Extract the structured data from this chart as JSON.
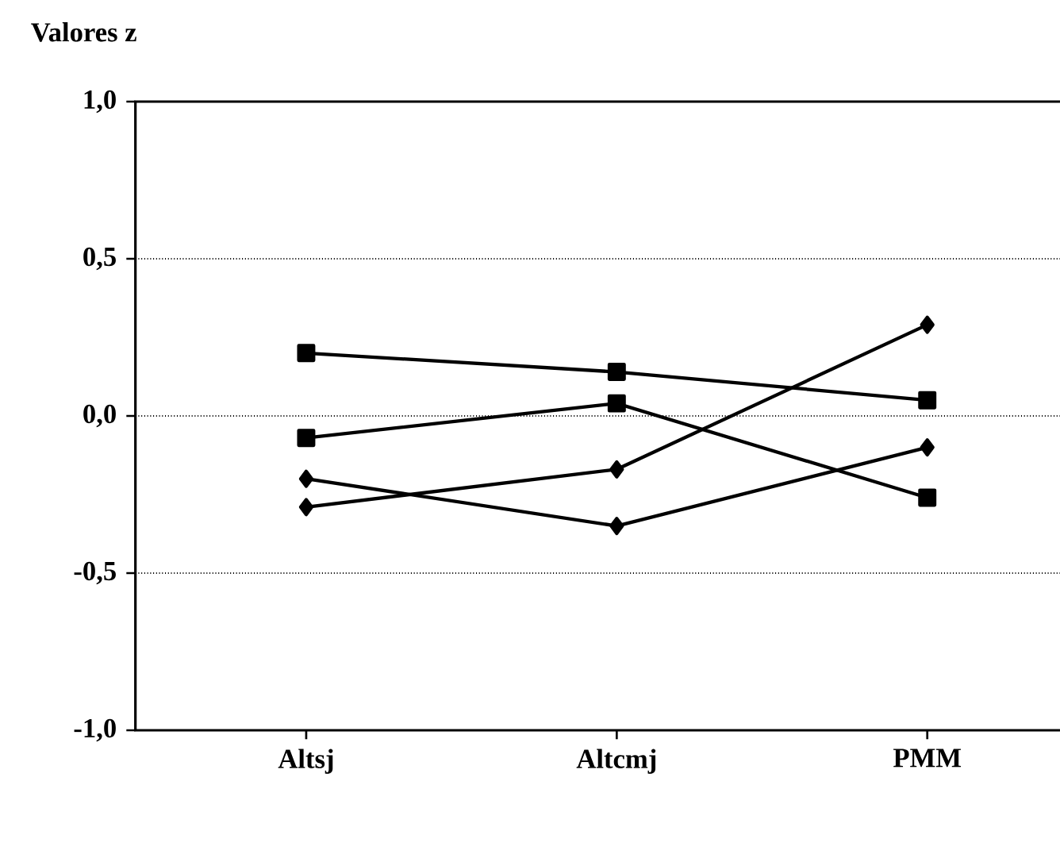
{
  "chart_data": {
    "type": "line",
    "ylabel": "Valores z",
    "categories": [
      "Altsj",
      "Altcmj",
      "PMM"
    ],
    "series": [
      {
        "color": "#000000",
        "marker": "square",
        "values": [
          0.2,
          0.14,
          0.05
        ]
      },
      {
        "color": "#000000",
        "marker": "square",
        "values": [
          -0.07,
          0.04,
          -0.26
        ]
      },
      {
        "color": "#000000",
        "marker": "diamond",
        "values": [
          -0.29,
          -0.17,
          0.29
        ]
      },
      {
        "color": "#000000",
        "marker": "diamond",
        "values": [
          -0.2,
          -0.35,
          -0.1
        ]
      }
    ],
    "ylim": [
      -1,
      1
    ],
    "yticks": [
      {
        "value": -1,
        "label": "-1,0"
      },
      {
        "value": -0.5,
        "label": "-0,5"
      },
      {
        "value": 0,
        "label": "0,0"
      },
      {
        "value": 0.5,
        "label": "0,5"
      },
      {
        "value": 1,
        "label": "1,0"
      }
    ],
    "grid": "y",
    "line_style": "solid"
  }
}
